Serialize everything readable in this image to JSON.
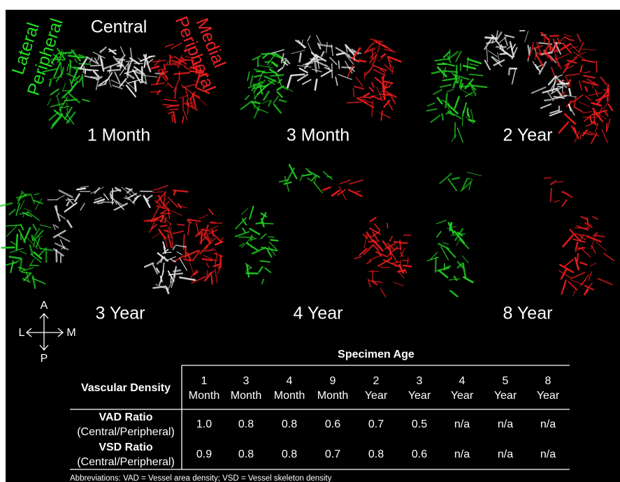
{
  "region_labels": {
    "lateral": [
      "Lateral",
      "Peripheral"
    ],
    "central": "Central",
    "medial": [
      "Medial",
      "Peripheral"
    ]
  },
  "panels": [
    "1 Month",
    "3 Month",
    "2 Year",
    "3 Year",
    "4 Year",
    "8 Year"
  ],
  "compass": {
    "anterior": "A",
    "posterior": "P",
    "lateral": "L",
    "medial": "M"
  },
  "table": {
    "group_header": "Specimen Age",
    "row_header": "Vascular Density",
    "columns": [
      [
        "1",
        "Month"
      ],
      [
        "3",
        "Month"
      ],
      [
        "4",
        "Month"
      ],
      [
        "9",
        "Month"
      ],
      [
        "2",
        "Year"
      ],
      [
        "3",
        "Year"
      ],
      [
        "4",
        "Year"
      ],
      [
        "5",
        "Year"
      ],
      [
        "8",
        "Year"
      ]
    ],
    "rows": [
      {
        "label": [
          "VAD Ratio",
          "(Central/Peripheral)"
        ],
        "values": [
          "1.0",
          "0.8",
          "0.8",
          "0.6",
          "0.7",
          "0.5",
          "n/a",
          "n/a",
          "n/a"
        ]
      },
      {
        "label": [
          "VSD Ratio",
          "(Central/Peripheral)"
        ],
        "values": [
          "0.9",
          "0.8",
          "0.8",
          "0.7",
          "0.8",
          "0.6",
          "n/a",
          "n/a",
          "n/a"
        ]
      }
    ]
  },
  "footnote": "Abbreviations: VAD = Vessel area density; VSD = Vessel skeleton density"
}
